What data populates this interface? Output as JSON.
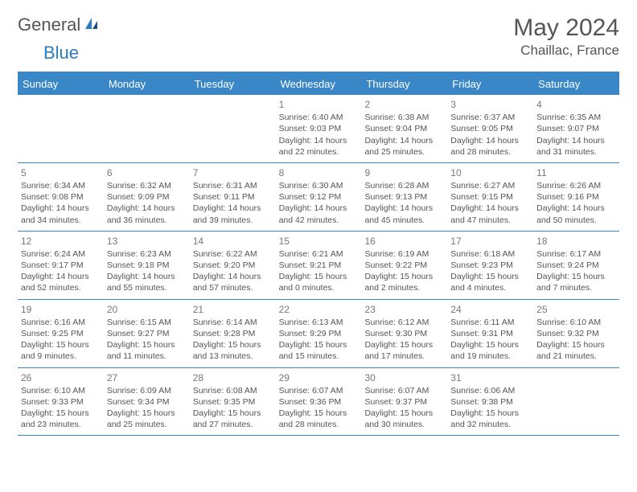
{
  "brand": {
    "general": "General",
    "blue": "Blue"
  },
  "header": {
    "title": "May 2024",
    "location": "Chaillac, France"
  },
  "colors": {
    "accent": "#3a87c7",
    "text": "#555555",
    "muted": "#777777",
    "bg": "#ffffff"
  },
  "typography": {
    "family": "Arial",
    "title_size_pt": 22,
    "location_size_pt": 13,
    "day_header_size_pt": 10,
    "body_size_pt": 8
  },
  "calendar": {
    "type": "table",
    "day_headers": [
      "Sunday",
      "Monday",
      "Tuesday",
      "Wednesday",
      "Thursday",
      "Friday",
      "Saturday"
    ],
    "weeks": [
      [
        null,
        null,
        null,
        {
          "n": "1",
          "sunrise": "Sunrise: 6:40 AM",
          "sunset": "Sunset: 9:03 PM",
          "daylight": "Daylight: 14 hours and 22 minutes."
        },
        {
          "n": "2",
          "sunrise": "Sunrise: 6:38 AM",
          "sunset": "Sunset: 9:04 PM",
          "daylight": "Daylight: 14 hours and 25 minutes."
        },
        {
          "n": "3",
          "sunrise": "Sunrise: 6:37 AM",
          "sunset": "Sunset: 9:05 PM",
          "daylight": "Daylight: 14 hours and 28 minutes."
        },
        {
          "n": "4",
          "sunrise": "Sunrise: 6:35 AM",
          "sunset": "Sunset: 9:07 PM",
          "daylight": "Daylight: 14 hours and 31 minutes."
        }
      ],
      [
        {
          "n": "5",
          "sunrise": "Sunrise: 6:34 AM",
          "sunset": "Sunset: 9:08 PM",
          "daylight": "Daylight: 14 hours and 34 minutes."
        },
        {
          "n": "6",
          "sunrise": "Sunrise: 6:32 AM",
          "sunset": "Sunset: 9:09 PM",
          "daylight": "Daylight: 14 hours and 36 minutes."
        },
        {
          "n": "7",
          "sunrise": "Sunrise: 6:31 AM",
          "sunset": "Sunset: 9:11 PM",
          "daylight": "Daylight: 14 hours and 39 minutes."
        },
        {
          "n": "8",
          "sunrise": "Sunrise: 6:30 AM",
          "sunset": "Sunset: 9:12 PM",
          "daylight": "Daylight: 14 hours and 42 minutes."
        },
        {
          "n": "9",
          "sunrise": "Sunrise: 6:28 AM",
          "sunset": "Sunset: 9:13 PM",
          "daylight": "Daylight: 14 hours and 45 minutes."
        },
        {
          "n": "10",
          "sunrise": "Sunrise: 6:27 AM",
          "sunset": "Sunset: 9:15 PM",
          "daylight": "Daylight: 14 hours and 47 minutes."
        },
        {
          "n": "11",
          "sunrise": "Sunrise: 6:26 AM",
          "sunset": "Sunset: 9:16 PM",
          "daylight": "Daylight: 14 hours and 50 minutes."
        }
      ],
      [
        {
          "n": "12",
          "sunrise": "Sunrise: 6:24 AM",
          "sunset": "Sunset: 9:17 PM",
          "daylight": "Daylight: 14 hours and 52 minutes."
        },
        {
          "n": "13",
          "sunrise": "Sunrise: 6:23 AM",
          "sunset": "Sunset: 9:18 PM",
          "daylight": "Daylight: 14 hours and 55 minutes."
        },
        {
          "n": "14",
          "sunrise": "Sunrise: 6:22 AM",
          "sunset": "Sunset: 9:20 PM",
          "daylight": "Daylight: 14 hours and 57 minutes."
        },
        {
          "n": "15",
          "sunrise": "Sunrise: 6:21 AM",
          "sunset": "Sunset: 9:21 PM",
          "daylight": "Daylight: 15 hours and 0 minutes."
        },
        {
          "n": "16",
          "sunrise": "Sunrise: 6:19 AM",
          "sunset": "Sunset: 9:22 PM",
          "daylight": "Daylight: 15 hours and 2 minutes."
        },
        {
          "n": "17",
          "sunrise": "Sunrise: 6:18 AM",
          "sunset": "Sunset: 9:23 PM",
          "daylight": "Daylight: 15 hours and 4 minutes."
        },
        {
          "n": "18",
          "sunrise": "Sunrise: 6:17 AM",
          "sunset": "Sunset: 9:24 PM",
          "daylight": "Daylight: 15 hours and 7 minutes."
        }
      ],
      [
        {
          "n": "19",
          "sunrise": "Sunrise: 6:16 AM",
          "sunset": "Sunset: 9:25 PM",
          "daylight": "Daylight: 15 hours and 9 minutes."
        },
        {
          "n": "20",
          "sunrise": "Sunrise: 6:15 AM",
          "sunset": "Sunset: 9:27 PM",
          "daylight": "Daylight: 15 hours and 11 minutes."
        },
        {
          "n": "21",
          "sunrise": "Sunrise: 6:14 AM",
          "sunset": "Sunset: 9:28 PM",
          "daylight": "Daylight: 15 hours and 13 minutes."
        },
        {
          "n": "22",
          "sunrise": "Sunrise: 6:13 AM",
          "sunset": "Sunset: 9:29 PM",
          "daylight": "Daylight: 15 hours and 15 minutes."
        },
        {
          "n": "23",
          "sunrise": "Sunrise: 6:12 AM",
          "sunset": "Sunset: 9:30 PM",
          "daylight": "Daylight: 15 hours and 17 minutes."
        },
        {
          "n": "24",
          "sunrise": "Sunrise: 6:11 AM",
          "sunset": "Sunset: 9:31 PM",
          "daylight": "Daylight: 15 hours and 19 minutes."
        },
        {
          "n": "25",
          "sunrise": "Sunrise: 6:10 AM",
          "sunset": "Sunset: 9:32 PM",
          "daylight": "Daylight: 15 hours and 21 minutes."
        }
      ],
      [
        {
          "n": "26",
          "sunrise": "Sunrise: 6:10 AM",
          "sunset": "Sunset: 9:33 PM",
          "daylight": "Daylight: 15 hours and 23 minutes."
        },
        {
          "n": "27",
          "sunrise": "Sunrise: 6:09 AM",
          "sunset": "Sunset: 9:34 PM",
          "daylight": "Daylight: 15 hours and 25 minutes."
        },
        {
          "n": "28",
          "sunrise": "Sunrise: 6:08 AM",
          "sunset": "Sunset: 9:35 PM",
          "daylight": "Daylight: 15 hours and 27 minutes."
        },
        {
          "n": "29",
          "sunrise": "Sunrise: 6:07 AM",
          "sunset": "Sunset: 9:36 PM",
          "daylight": "Daylight: 15 hours and 28 minutes."
        },
        {
          "n": "30",
          "sunrise": "Sunrise: 6:07 AM",
          "sunset": "Sunset: 9:37 PM",
          "daylight": "Daylight: 15 hours and 30 minutes."
        },
        {
          "n": "31",
          "sunrise": "Sunrise: 6:06 AM",
          "sunset": "Sunset: 9:38 PM",
          "daylight": "Daylight: 15 hours and 32 minutes."
        },
        null
      ]
    ]
  }
}
